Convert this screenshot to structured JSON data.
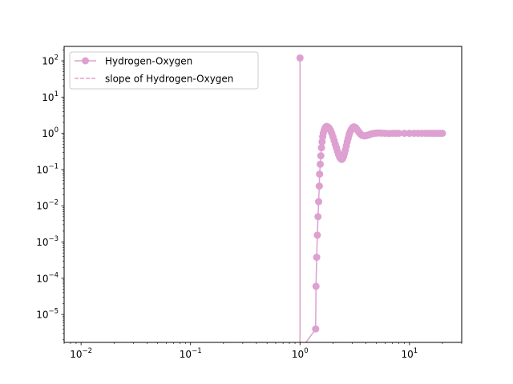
{
  "chart_data": {
    "type": "line",
    "title": "",
    "xlabel": "",
    "ylabel": "",
    "xscale": "log",
    "yscale": "log",
    "xlim": [
      0.007,
      30
    ],
    "ylim": [
      1.7e-06,
      250
    ],
    "grid": false,
    "legend_position": "top-left",
    "x_ticks": [
      {
        "value": 0.01,
        "base": "10",
        "exp": "−2"
      },
      {
        "value": 0.1,
        "base": "10",
        "exp": "−1"
      },
      {
        "value": 1,
        "base": "10",
        "exp": "0"
      },
      {
        "value": 10,
        "base": "10",
        "exp": "1"
      }
    ],
    "y_ticks": [
      {
        "value": 1e-05,
        "base": "10",
        "exp": "−5"
      },
      {
        "value": 0.0001,
        "base": "10",
        "exp": "−4"
      },
      {
        "value": 0.001,
        "base": "10",
        "exp": "−3"
      },
      {
        "value": 0.01,
        "base": "10",
        "exp": "−2"
      },
      {
        "value": 0.1,
        "base": "10",
        "exp": "−1"
      },
      {
        "value": 1,
        "base": "10",
        "exp": "0"
      },
      {
        "value": 10,
        "base": "10",
        "exp": "1"
      },
      {
        "value": 100,
        "base": "10",
        "exp": "2"
      }
    ],
    "series": [
      {
        "name": "Hydrogen-Oxygen",
        "style": "line-marker",
        "color": "#dda0d0",
        "x": [
          1.0,
          1.0,
          1.39,
          1.4,
          1.42,
          1.44,
          1.46,
          1.48,
          1.5,
          1.51,
          1.53,
          1.55,
          1.57,
          1.59,
          1.61,
          1.63,
          1.66,
          1.69,
          1.72,
          1.75,
          1.8,
          1.85,
          1.9,
          1.95,
          2.0,
          2.05,
          2.1,
          2.15,
          2.2,
          2.25,
          2.3,
          2.35,
          2.4,
          2.45,
          2.5,
          2.55,
          2.6,
          2.65,
          2.7,
          2.75,
          2.8,
          2.85,
          2.9,
          2.95,
          3.0,
          3.05,
          3.1,
          3.15,
          3.2,
          3.25,
          3.3,
          3.35,
          3.4,
          3.45,
          3.5,
          3.55,
          3.6,
          3.65,
          3.7,
          3.8,
          3.9,
          4.0,
          4.1,
          4.2,
          4.3,
          4.4,
          4.5,
          4.6,
          4.8,
          5.0,
          5.3,
          5.6,
          6.0,
          6.5,
          7.0,
          7.5,
          8.0,
          9.0,
          10.0,
          11.0,
          12.0,
          13.0,
          14.0,
          15.0,
          16.0,
          17.0,
          18.0,
          19.0,
          20.0
        ],
        "y": [
          120,
          1e-06,
          4e-06,
          6e-05,
          0.00038,
          0.00155,
          0.005,
          0.013,
          0.035,
          0.075,
          0.14,
          0.24,
          0.4,
          0.58,
          0.8,
          1.0,
          1.2,
          1.38,
          1.5,
          1.55,
          1.5,
          1.38,
          1.2,
          1.0,
          0.8,
          0.63,
          0.5,
          0.4,
          0.32,
          0.26,
          0.22,
          0.2,
          0.19,
          0.2,
          0.23,
          0.28,
          0.35,
          0.45,
          0.58,
          0.72,
          0.88,
          1.03,
          1.18,
          1.3,
          1.4,
          1.47,
          1.5,
          1.49,
          1.45,
          1.38,
          1.3,
          1.22,
          1.15,
          1.08,
          1.02,
          0.97,
          0.93,
          0.9,
          0.88,
          0.86,
          0.85,
          0.86,
          0.88,
          0.9,
          0.92,
          0.94,
          0.96,
          0.98,
          1.0,
          1.01,
          1.02,
          1.01,
          1.0,
          0.99,
          1.0,
          1.0,
          1.0,
          1.0,
          1.0,
          1.0,
          1.0,
          1.0,
          1.0,
          1.0,
          1.0,
          1.0,
          1.0,
          1.0,
          1.0
        ]
      },
      {
        "name": "slope of Hydrogen-Oxygen",
        "style": "dashed",
        "color": "#dda0d0",
        "x": [],
        "y": []
      }
    ]
  }
}
